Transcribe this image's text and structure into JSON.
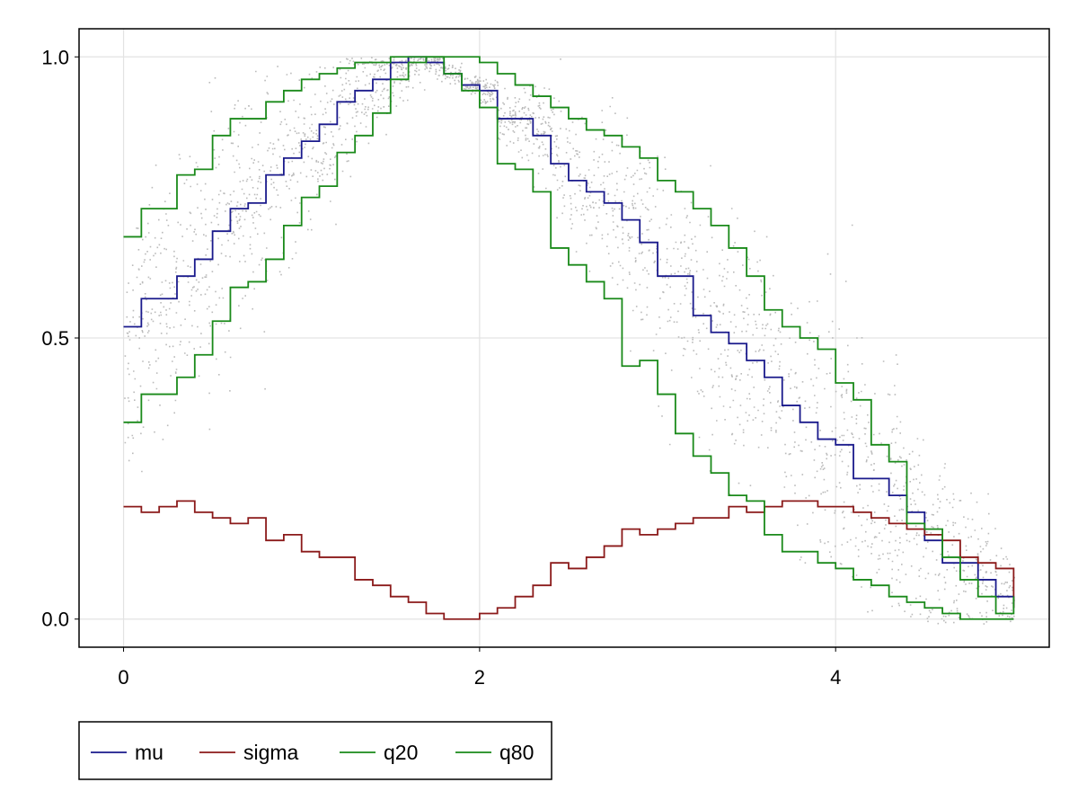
{
  "chart_data": {
    "type": "line",
    "title": "",
    "xlabel": "",
    "ylabel": "",
    "xlim": [
      -0.25,
      5.2
    ],
    "ylim": [
      -0.05,
      1.05
    ],
    "xticks": [
      0,
      2,
      4
    ],
    "xtick_labels": [
      "0",
      "2",
      "4"
    ],
    "yticks": [
      0,
      0.5,
      1
    ],
    "ytick_labels": [
      "0.0",
      "0.5",
      "1.0"
    ],
    "grid": true,
    "legend_position": "bottom-left, outside plot",
    "step": "post",
    "bin_width": 0.1,
    "scatter": {
      "name": "samples",
      "color": "#bbbbbb",
      "x_range": [
        0,
        5
      ],
      "description_note": "dense gray point cloud around the mu curve"
    },
    "series": [
      {
        "name": "mu",
        "color": "#1a1a8c",
        "x": [
          0,
          0.1,
          0.2,
          0.3,
          0.4,
          0.5,
          0.6,
          0.7,
          0.8,
          0.9,
          1,
          1.1,
          1.2,
          1.3,
          1.4,
          1.5,
          1.6,
          1.7,
          1.8,
          1.9,
          2,
          2.1,
          2.2,
          2.3,
          2.4,
          2.5,
          2.6,
          2.7,
          2.8,
          2.9,
          3,
          3.1,
          3.2,
          3.3,
          3.4,
          3.5,
          3.6,
          3.7,
          3.8,
          3.9,
          4,
          4.1,
          4.2,
          4.3,
          4.4,
          4.5,
          4.6,
          4.7,
          4.8,
          4.9,
          5
        ],
        "values": [
          0.52,
          0.57,
          0.57,
          0.61,
          0.64,
          0.69,
          0.73,
          0.74,
          0.79,
          0.82,
          0.85,
          0.88,
          0.92,
          0.94,
          0.96,
          0.99,
          1.0,
          0.99,
          0.97,
          0.95,
          0.94,
          0.89,
          0.89,
          0.86,
          0.81,
          0.78,
          0.76,
          0.74,
          0.71,
          0.67,
          0.61,
          0.61,
          0.54,
          0.51,
          0.49,
          0.46,
          0.43,
          0.38,
          0.35,
          0.32,
          0.31,
          0.25,
          0.25,
          0.22,
          0.19,
          0.14,
          0.1,
          0.1,
          0.07,
          0.04,
          0.02
        ]
      },
      {
        "name": "sigma",
        "color": "#8b1a1a",
        "x": [
          0,
          0.1,
          0.2,
          0.3,
          0.4,
          0.5,
          0.6,
          0.7,
          0.8,
          0.9,
          1,
          1.1,
          1.2,
          1.3,
          1.4,
          1.5,
          1.6,
          1.7,
          1.8,
          1.9,
          2,
          2.1,
          2.2,
          2.3,
          2.4,
          2.5,
          2.6,
          2.7,
          2.8,
          2.9,
          3,
          3.1,
          3.2,
          3.3,
          3.4,
          3.5,
          3.6,
          3.7,
          3.8,
          3.9,
          4,
          4.1,
          4.2,
          4.3,
          4.4,
          4.5,
          4.6,
          4.7,
          4.8,
          4.9,
          5
        ],
        "values": [
          0.2,
          0.19,
          0.2,
          0.21,
          0.19,
          0.18,
          0.17,
          0.18,
          0.14,
          0.15,
          0.12,
          0.11,
          0.11,
          0.07,
          0.06,
          0.04,
          0.03,
          0.01,
          0.0,
          0.0,
          0.01,
          0.02,
          0.04,
          0.06,
          0.1,
          0.09,
          0.11,
          0.13,
          0.16,
          0.15,
          0.16,
          0.17,
          0.18,
          0.18,
          0.2,
          0.19,
          0.2,
          0.21,
          0.21,
          0.2,
          0.2,
          0.19,
          0.18,
          0.17,
          0.16,
          0.15,
          0.14,
          0.11,
          0.1,
          0.09,
          0.02
        ]
      },
      {
        "name": "q20",
        "color": "#1a8a1a",
        "x": [
          0,
          0.1,
          0.2,
          0.3,
          0.4,
          0.5,
          0.6,
          0.7,
          0.8,
          0.9,
          1,
          1.1,
          1.2,
          1.3,
          1.4,
          1.5,
          1.6,
          1.7,
          1.8,
          1.9,
          2,
          2.1,
          2.2,
          2.3,
          2.4,
          2.5,
          2.6,
          2.7,
          2.8,
          2.9,
          3,
          3.1,
          3.2,
          3.3,
          3.4,
          3.5,
          3.6,
          3.7,
          3.8,
          3.9,
          4,
          4.1,
          4.2,
          4.3,
          4.4,
          4.5,
          4.6,
          4.7,
          4.8,
          4.9,
          5
        ],
        "values": [
          0.35,
          0.4,
          0.4,
          0.43,
          0.47,
          0.53,
          0.59,
          0.6,
          0.64,
          0.7,
          0.75,
          0.77,
          0.83,
          0.86,
          0.9,
          0.96,
          0.99,
          1.0,
          0.97,
          0.94,
          0.91,
          0.81,
          0.8,
          0.76,
          0.66,
          0.63,
          0.6,
          0.57,
          0.45,
          0.46,
          0.4,
          0.33,
          0.29,
          0.26,
          0.22,
          0.21,
          0.15,
          0.12,
          0.12,
          0.1,
          0.09,
          0.07,
          0.06,
          0.04,
          0.03,
          0.02,
          0.01,
          0.0,
          0.0,
          0.0,
          0.0
        ]
      },
      {
        "name": "q80",
        "color": "#1a8a1a",
        "x": [
          0,
          0.1,
          0.2,
          0.3,
          0.4,
          0.5,
          0.6,
          0.7,
          0.8,
          0.9,
          1,
          1.1,
          1.2,
          1.3,
          1.4,
          1.5,
          1.6,
          1.7,
          1.8,
          1.9,
          2,
          2.1,
          2.2,
          2.3,
          2.4,
          2.5,
          2.6,
          2.7,
          2.8,
          2.9,
          3,
          3.1,
          3.2,
          3.3,
          3.4,
          3.5,
          3.6,
          3.7,
          3.8,
          3.9,
          4,
          4.1,
          4.2,
          4.3,
          4.4,
          4.5,
          4.6,
          4.7,
          4.8,
          4.9,
          5
        ],
        "values": [
          0.68,
          0.73,
          0.73,
          0.79,
          0.8,
          0.86,
          0.89,
          0.89,
          0.92,
          0.94,
          0.96,
          0.97,
          0.98,
          0.99,
          0.99,
          1.0,
          1.0,
          1.0,
          1.0,
          1.0,
          0.99,
          0.97,
          0.95,
          0.93,
          0.91,
          0.89,
          0.87,
          0.86,
          0.84,
          0.82,
          0.78,
          0.76,
          0.73,
          0.7,
          0.66,
          0.61,
          0.55,
          0.52,
          0.5,
          0.48,
          0.42,
          0.39,
          0.31,
          0.28,
          0.17,
          0.16,
          0.11,
          0.07,
          0.04,
          0.01,
          0.04
        ]
      }
    ]
  },
  "legend": {
    "items": [
      {
        "label": "mu",
        "color": "#1a1a8c"
      },
      {
        "label": "sigma",
        "color": "#8b1a1a"
      },
      {
        "label": "q20",
        "color": "#1a8a1a"
      },
      {
        "label": "q80",
        "color": "#1a8a1a"
      }
    ]
  }
}
